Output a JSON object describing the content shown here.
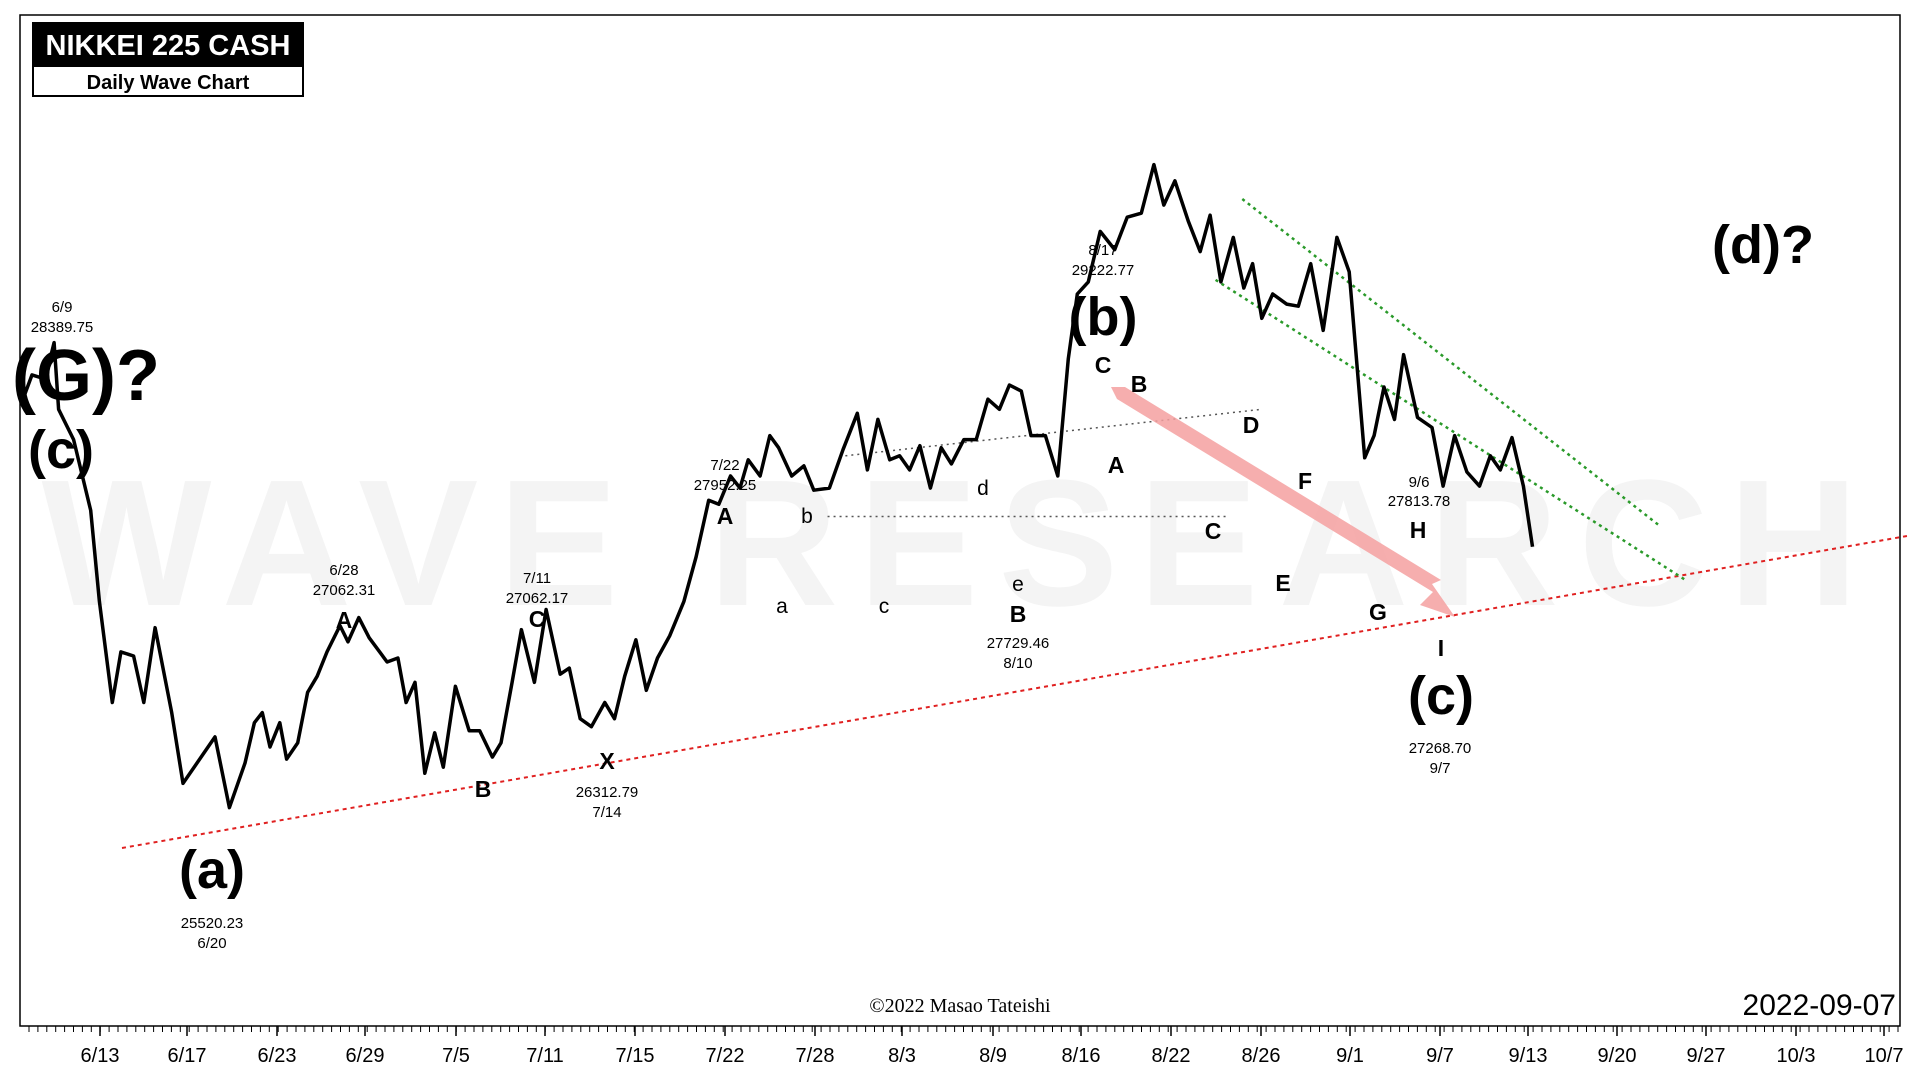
{
  "chart_data": {
    "type": "line",
    "title": "NIKKEI 225 CASH",
    "subtitle": "Daily Wave Chart",
    "watermark": "WAVE RESEARCH",
    "copyright": "©2022 Masao Tateishi",
    "date_stamp": "2022-09-07",
    "x_ticks": [
      "6/13",
      "6/17",
      "6/23",
      "6/29",
      "7/5",
      "7/11",
      "7/15",
      "7/22",
      "7/28",
      "8/3",
      "8/9",
      "8/16",
      "8/22",
      "8/26",
      "9/1",
      "9/7",
      "9/13",
      "9/20",
      "9/27",
      "10/3",
      "10/7"
    ],
    "ylim": [
      24900,
      29900
    ],
    "series": [
      {
        "values": [
          28000,
          28120,
          28100,
          28280,
          27950,
          27800,
          27450,
          27000,
          26500,
          26750,
          26730,
          26500,
          26870,
          26450,
          26100,
          26250,
          26330,
          25980,
          26200,
          26400,
          26450,
          26280,
          26400,
          26220,
          26300,
          26550,
          26630,
          26750,
          26880,
          26800,
          26920,
          26820,
          26700,
          26720,
          26500,
          26600,
          26150,
          26350,
          26180,
          26580,
          26360,
          26360,
          26230,
          26300,
          26600,
          26860,
          26600,
          26960,
          26640,
          26670,
          26420,
          26380,
          26500,
          26420,
          26630,
          26810,
          26560,
          26720,
          26830,
          27000,
          27220,
          27500,
          27480,
          27620,
          27560,
          27700,
          27620,
          27820,
          27760,
          27620,
          27670,
          27550,
          27560,
          27750,
          27930,
          27650,
          27900,
          27700,
          27720,
          27650,
          27770,
          27560,
          27760,
          27680,
          27800,
          27800,
          28000,
          27950,
          28070,
          28040,
          27820,
          27820,
          27620,
          28200,
          28520,
          28580,
          28830,
          28740,
          28900,
          28920,
          29160,
          28960,
          29080,
          28880,
          28730,
          28910,
          28580,
          28800,
          28550,
          28670,
          28400,
          28520,
          28470,
          28460,
          28670,
          28340,
          28800,
          28630,
          27710,
          27820,
          28060,
          27900,
          28220,
          27910,
          27860,
          27570,
          27820,
          27640,
          27570,
          27720,
          27650,
          27810,
          27570,
          27270
        ]
      }
    ],
    "x_points": [
      0,
      5.04,
      12.46,
      17.45,
      20,
      28.44,
      38.03,
      42.93,
      50.17,
      55,
      62.16,
      67.87,
      74.19,
      83.54,
      89.87,
      101.65,
      107.87,
      115.96,
      124.71,
      130,
      134.44,
      138.77,
      144.29,
      148.07,
      154.31,
      159.88,
      165.29,
      170.78,
      178.09,
      182.61,
      188.65,
      194.52,
      204.55,
      210.64,
      215.22,
      220.25,
      225.75,
      231.3,
      236.12,
      242.9,
      250.7,
      256.59,
      263.7,
      268.53,
      274.77,
      280,
      287.3,
      293.86,
      301.79,
      306.91,
      313.04,
      319.35,
      326.88,
      332.32,
      338.03,
      344.35,
      350.15,
      356.48,
      363.29,
      371.3,
      378.17,
      385.23,
      390.88,
      397.47,
      402.83,
      407.42,
      414.09,
      419.54,
      424.5,
      431.83,
      438.68,
      444.26,
      453.02,
      460.66,
      468.71,
      474.4,
      480.29,
      486.89,
      492.48,
      498.11,
      503.88,
      509.76,
      515.87,
      521.59,
      528.6,
      535.53,
      542.1,
      548.53,
      554.16,
      560.86,
      566.29,
      574.39,
      581.36,
      587.26,
      592.32,
      598.49,
      605.16,
      613.32,
      620.33,
      628.25,
      635.32,
      640.89,
      647.11,
      654.69,
      661.36,
      666.91,
      672.95,
      679.93,
      685.86,
      690.78,
      695.96,
      702.06,
      709.86,
      716.45,
      723.43,
      730.47,
      738.12,
      745.07,
      753.78,
      759.03,
      764.62,
      770.49,
      775.64,
      783.41,
      791.57,
      797.8,
      804.29,
      811.19,
      818.28,
      824.34,
      829.93,
      836.49,
      842.93,
      848.02
    ],
    "trendline_values": [
      [
        -100,
        25220
      ],
      [
        1000,
        28150
      ]
    ],
    "channel_upper": [
      [
        685,
        28990
      ],
      [
        920,
        27370
      ]
    ],
    "channel_lower": [
      [
        670,
        28590
      ],
      [
        935,
        27100
      ]
    ],
    "triangle_upper": [
      [
        462,
        27720
      ],
      [
        696,
        27950
      ]
    ],
    "triangle_lower": [
      [
        452,
        27420
      ],
      [
        676,
        27420
      ]
    ],
    "labels": {
      "g_wave": "(G)?",
      "c_top": "(c)",
      "top_date": "6/9",
      "top_price": "28389.75",
      "a_wave": "(a)",
      "a_price": "25520.23",
      "a_date": "6/20",
      "sub_a1": "A",
      "a1_date": "6/28",
      "a1_price": "27062.31",
      "sub_b1": "B",
      "sub_c1": "C",
      "c1_date": "7/11",
      "c1_price": "27062.17",
      "sub_x": "X",
      "x_price": "26312.79",
      "x_date": "7/14",
      "sub_a2": "A",
      "a2_date": "7/22",
      "a2_price": "27952.25",
      "tri_a": "a",
      "tri_b": "b",
      "tri_c": "c",
      "tri_d": "d",
      "tri_e": "e",
      "sub_b2": "B",
      "b2_price": "27729.46",
      "b2_date": "8/10",
      "b_wave": "(b)",
      "b_date": "8/17",
      "b_price": "29222.77",
      "sub_c2": "C",
      "dn_a": "A",
      "dn_b": "B",
      "dn_c": "C",
      "dn_d": "D",
      "dn_e": "E",
      "dn_f": "F",
      "dn_g": "G",
      "dn_h": "H",
      "dn_i": "I",
      "h_date": "9/6",
      "h_price": "27813.78",
      "c_wave": "(c)",
      "c_price": "27268.70",
      "c_date": "9/7",
      "d_wave": "(d)?"
    },
    "colors": {
      "price": "#000000",
      "trendline": "#e02020",
      "channel": "#2a9a2a",
      "triangle": "#555555",
      "arrow": "#f4a0a0"
    }
  }
}
